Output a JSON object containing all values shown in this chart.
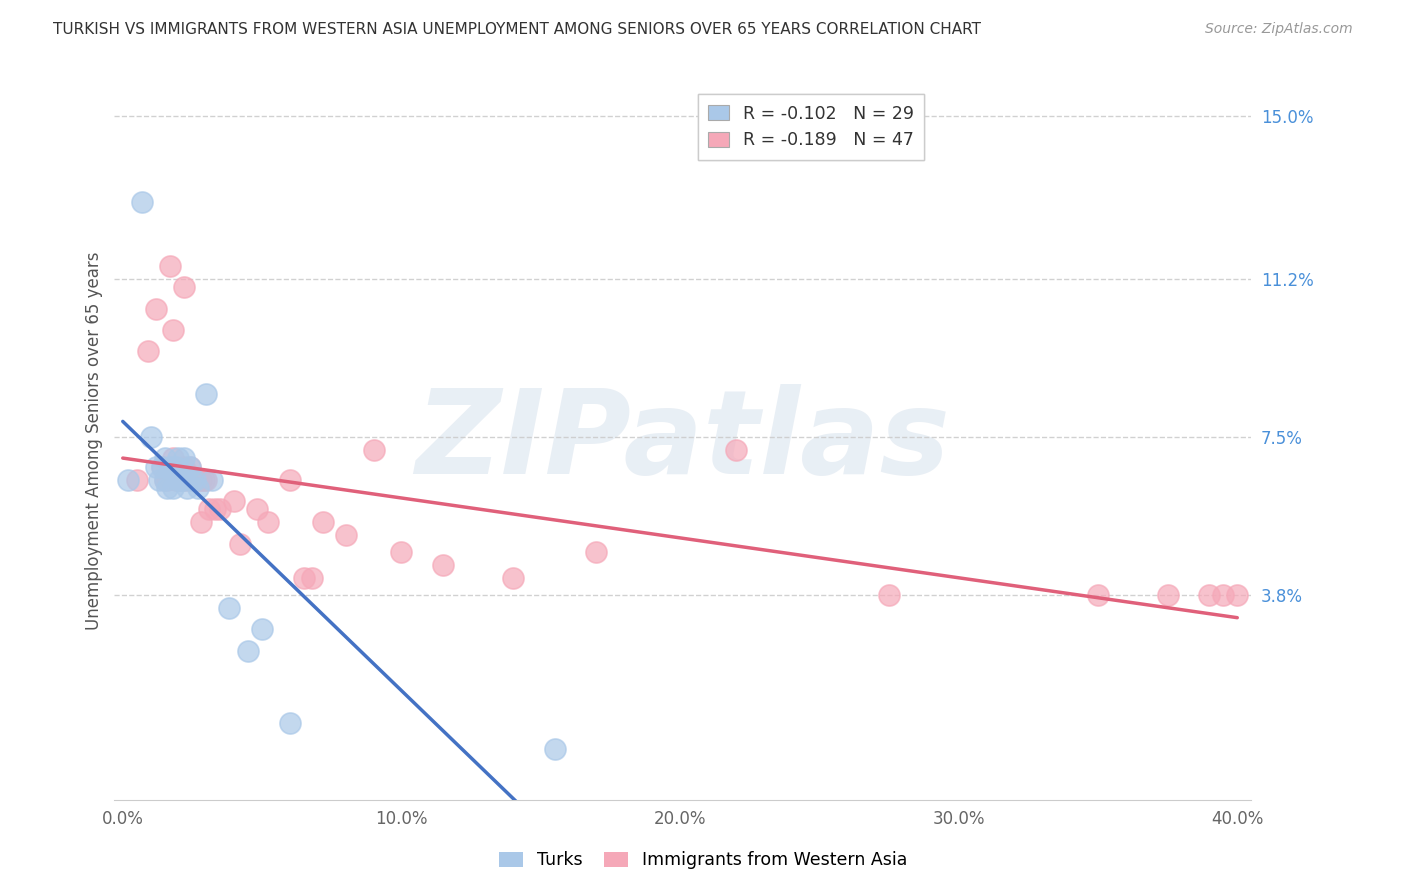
{
  "title": "TURKISH VS IMMIGRANTS FROM WESTERN ASIA UNEMPLOYMENT AMONG SENIORS OVER 65 YEARS CORRELATION CHART",
  "source": "Source: ZipAtlas.com",
  "ylabel": "Unemployment Among Seniors over 65 years",
  "xlim": [
    -0.003,
    0.405
  ],
  "ylim": [
    -0.01,
    0.158
  ],
  "xtick_labels": [
    "0.0%",
    "10.0%",
    "20.0%",
    "30.0%",
    "40.0%"
  ],
  "xtick_values": [
    0.0,
    0.1,
    0.2,
    0.3,
    0.4
  ],
  "ytick_labels_right": [
    "3.8%",
    "7.5%",
    "11.2%",
    "15.0%"
  ],
  "ytick_values_right": [
    0.038,
    0.075,
    0.112,
    0.15
  ],
  "turks_color": "#aac8e8",
  "immigrants_color": "#f5a8b8",
  "turks_line_color": "#4472c4",
  "immigrants_line_color": "#e0607a",
  "right_axis_color": "#4a90d9",
  "grid_color": "#d8d8d8",
  "background_color": "#ffffff",
  "turks_R": "-0.102",
  "turks_N": "29",
  "immigrants_R": "-0.189",
  "immigrants_N": "47",
  "watermark": "ZIPatlas",
  "turks_x": [
    0.002,
    0.007,
    0.01,
    0.012,
    0.013,
    0.014,
    0.015,
    0.015,
    0.016,
    0.017,
    0.018,
    0.019,
    0.02,
    0.02,
    0.021,
    0.022,
    0.022,
    0.023,
    0.024,
    0.025,
    0.026,
    0.027,
    0.03,
    0.032,
    0.038,
    0.045,
    0.05,
    0.06,
    0.155
  ],
  "turks_y": [
    0.065,
    0.13,
    0.075,
    0.068,
    0.065,
    0.068,
    0.065,
    0.07,
    0.063,
    0.068,
    0.063,
    0.068,
    0.065,
    0.07,
    0.065,
    0.065,
    0.07,
    0.063,
    0.068,
    0.065,
    0.065,
    0.063,
    0.085,
    0.065,
    0.035,
    0.025,
    0.03,
    0.008,
    0.002
  ],
  "immigrants_x": [
    0.005,
    0.009,
    0.012,
    0.014,
    0.015,
    0.016,
    0.017,
    0.018,
    0.018,
    0.019,
    0.02,
    0.021,
    0.022,
    0.022,
    0.023,
    0.024,
    0.025,
    0.026,
    0.027,
    0.028,
    0.028,
    0.029,
    0.03,
    0.031,
    0.033,
    0.035,
    0.04,
    0.042,
    0.048,
    0.052,
    0.06,
    0.065,
    0.068,
    0.072,
    0.08,
    0.09,
    0.1,
    0.115,
    0.14,
    0.17,
    0.22,
    0.275,
    0.35,
    0.375,
    0.39,
    0.395,
    0.4
  ],
  "immigrants_y": [
    0.065,
    0.095,
    0.105,
    0.068,
    0.065,
    0.065,
    0.115,
    0.1,
    0.07,
    0.065,
    0.065,
    0.065,
    0.11,
    0.068,
    0.065,
    0.068,
    0.065,
    0.065,
    0.065,
    0.065,
    0.055,
    0.065,
    0.065,
    0.058,
    0.058,
    0.058,
    0.06,
    0.05,
    0.058,
    0.055,
    0.065,
    0.042,
    0.042,
    0.055,
    0.052,
    0.072,
    0.048,
    0.045,
    0.042,
    0.048,
    0.072,
    0.038,
    0.038,
    0.038,
    0.038,
    0.038,
    0.038
  ],
  "turks_line_xstart": 0.0,
  "turks_line_xend_solid": 0.155,
  "turks_line_xend_dashed": 0.4,
  "immigrants_line_xstart": 0.0,
  "immigrants_line_xend": 0.4
}
